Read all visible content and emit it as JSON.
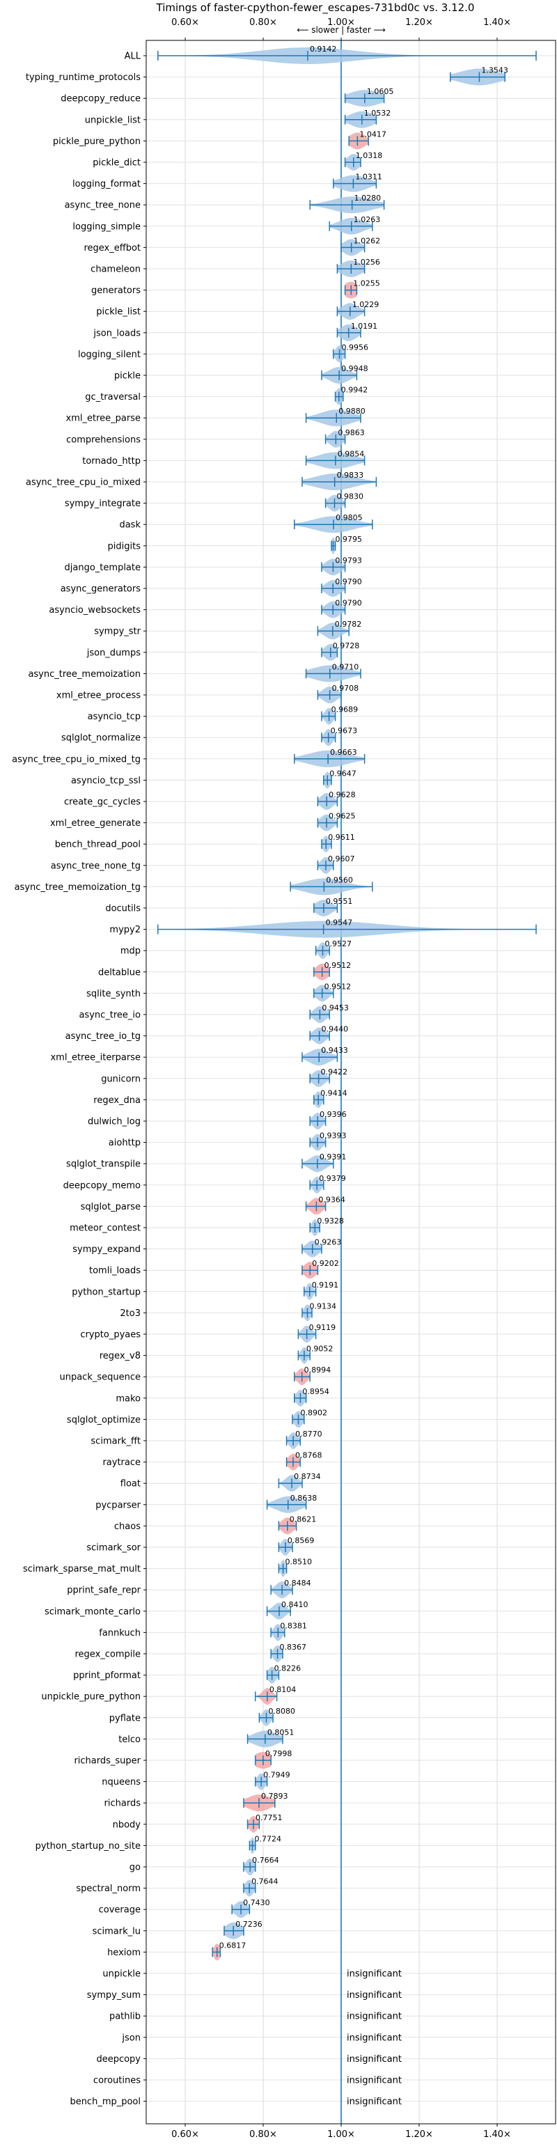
{
  "chart_data": {
    "type": "violin",
    "title": "Timings of faster-cpython-fewer_escapes-731bd0c vs. 3.12.0",
    "direction_label": "⟵ slower | faster ⟶",
    "xlim": [
      0.5,
      1.55
    ],
    "x_ticks": [
      0.6,
      0.8,
      1.0,
      1.2,
      1.4
    ],
    "x_tick_labels": [
      "0.60×",
      "0.80×",
      "1.00×",
      "1.20×",
      "1.40×"
    ],
    "reference_line": 1.0,
    "grid": true,
    "colors": {
      "normal": "#a6c8e8",
      "significant": "#f4a6a6",
      "line": "#1f77b4"
    },
    "insignificant_label": "insignificant",
    "benchmarks": [
      {
        "name": "ALL",
        "value": 0.9142,
        "lo": 0.53,
        "hi": 1.5,
        "spread": 0.12,
        "highlight": false
      },
      {
        "name": "typing_runtime_protocols",
        "value": 1.3543,
        "lo": 1.28,
        "hi": 1.42,
        "spread": 0.05,
        "highlight": false
      },
      {
        "name": "deepcopy_reduce",
        "value": 1.0605,
        "lo": 1.01,
        "hi": 1.11,
        "spread": 0.04,
        "highlight": false
      },
      {
        "name": "unpickle_list",
        "value": 1.0532,
        "lo": 1.01,
        "hi": 1.09,
        "spread": 0.03,
        "highlight": false
      },
      {
        "name": "pickle_pure_python",
        "value": 1.0417,
        "lo": 1.02,
        "hi": 1.07,
        "spread": 0.02,
        "highlight": true
      },
      {
        "name": "pickle_dict",
        "value": 1.0318,
        "lo": 1.01,
        "hi": 1.05,
        "spread": 0.015,
        "highlight": false
      },
      {
        "name": "logging_format",
        "value": 1.0311,
        "lo": 0.98,
        "hi": 1.09,
        "spread": 0.035,
        "highlight": false
      },
      {
        "name": "async_tree_none",
        "value": 1.028,
        "lo": 0.92,
        "hi": 1.11,
        "spread": 0.05,
        "highlight": false
      },
      {
        "name": "logging_simple",
        "value": 1.0263,
        "lo": 0.97,
        "hi": 1.08,
        "spread": 0.03,
        "highlight": false
      },
      {
        "name": "regex_effbot",
        "value": 1.0262,
        "lo": 1.0,
        "hi": 1.06,
        "spread": 0.02,
        "highlight": false
      },
      {
        "name": "chameleon",
        "value": 1.0256,
        "lo": 0.99,
        "hi": 1.06,
        "spread": 0.025,
        "highlight": false
      },
      {
        "name": "generators",
        "value": 1.0255,
        "lo": 1.01,
        "hi": 1.04,
        "spread": 0.02,
        "highlight": true
      },
      {
        "name": "pickle_list",
        "value": 1.0229,
        "lo": 0.99,
        "hi": 1.06,
        "spread": 0.02,
        "highlight": false
      },
      {
        "name": "json_loads",
        "value": 1.0191,
        "lo": 0.99,
        "hi": 1.05,
        "spread": 0.02,
        "highlight": false
      },
      {
        "name": "logging_silent",
        "value": 0.9956,
        "lo": 0.98,
        "hi": 1.01,
        "spread": 0.01,
        "highlight": false
      },
      {
        "name": "pickle",
        "value": 0.9948,
        "lo": 0.95,
        "hi": 1.04,
        "spread": 0.025,
        "highlight": false
      },
      {
        "name": "gc_traversal",
        "value": 0.9942,
        "lo": 0.985,
        "hi": 1.005,
        "spread": 0.008,
        "highlight": false
      },
      {
        "name": "xml_etree_parse",
        "value": 0.988,
        "lo": 0.91,
        "hi": 1.05,
        "spread": 0.04,
        "highlight": false
      },
      {
        "name": "comprehensions",
        "value": 0.9863,
        "lo": 0.96,
        "hi": 1.01,
        "spread": 0.015,
        "highlight": false
      },
      {
        "name": "tornado_http",
        "value": 0.9854,
        "lo": 0.91,
        "hi": 1.06,
        "spread": 0.045,
        "highlight": false
      },
      {
        "name": "async_tree_cpu_io_mixed",
        "value": 0.9833,
        "lo": 0.9,
        "hi": 1.09,
        "spread": 0.05,
        "highlight": false
      },
      {
        "name": "sympy_integrate",
        "value": 0.983,
        "lo": 0.96,
        "hi": 1.01,
        "spread": 0.015,
        "highlight": false
      },
      {
        "name": "dask",
        "value": 0.9805,
        "lo": 0.88,
        "hi": 1.08,
        "spread": 0.05,
        "highlight": false
      },
      {
        "name": "pidigits",
        "value": 0.9795,
        "lo": 0.975,
        "hi": 0.985,
        "spread": 0.005,
        "highlight": false
      },
      {
        "name": "django_template",
        "value": 0.9793,
        "lo": 0.95,
        "hi": 1.01,
        "spread": 0.018,
        "highlight": false
      },
      {
        "name": "async_generators",
        "value": 0.979,
        "lo": 0.95,
        "hi": 1.01,
        "spread": 0.018,
        "highlight": false
      },
      {
        "name": "asyncio_websockets",
        "value": 0.979,
        "lo": 0.95,
        "hi": 1.01,
        "spread": 0.018,
        "highlight": false
      },
      {
        "name": "sympy_str",
        "value": 0.9782,
        "lo": 0.94,
        "hi": 1.02,
        "spread": 0.02,
        "highlight": false
      },
      {
        "name": "json_dumps",
        "value": 0.9728,
        "lo": 0.95,
        "hi": 0.99,
        "spread": 0.015,
        "highlight": false
      },
      {
        "name": "async_tree_memoization",
        "value": 0.971,
        "lo": 0.91,
        "hi": 1.05,
        "spread": 0.045,
        "highlight": false
      },
      {
        "name": "xml_etree_process",
        "value": 0.9708,
        "lo": 0.94,
        "hi": 1.0,
        "spread": 0.018,
        "highlight": false
      },
      {
        "name": "asyncio_tcp",
        "value": 0.9689,
        "lo": 0.95,
        "hi": 0.985,
        "spread": 0.01,
        "highlight": false
      },
      {
        "name": "sqlglot_normalize",
        "value": 0.9673,
        "lo": 0.95,
        "hi": 0.985,
        "spread": 0.01,
        "highlight": false
      },
      {
        "name": "async_tree_cpu_io_mixed_tg",
        "value": 0.9663,
        "lo": 0.88,
        "hi": 1.06,
        "spread": 0.05,
        "highlight": false
      },
      {
        "name": "asyncio_tcp_ssl",
        "value": 0.9647,
        "lo": 0.955,
        "hi": 0.975,
        "spread": 0.007,
        "highlight": false
      },
      {
        "name": "create_gc_cycles",
        "value": 0.9628,
        "lo": 0.94,
        "hi": 0.99,
        "spread": 0.015,
        "highlight": false
      },
      {
        "name": "xml_etree_generate",
        "value": 0.9625,
        "lo": 0.94,
        "hi": 0.99,
        "spread": 0.015,
        "highlight": false
      },
      {
        "name": "bench_thread_pool",
        "value": 0.9611,
        "lo": 0.95,
        "hi": 0.975,
        "spread": 0.008,
        "highlight": false
      },
      {
        "name": "async_tree_none_tg",
        "value": 0.9607,
        "lo": 0.94,
        "hi": 0.98,
        "spread": 0.012,
        "highlight": false
      },
      {
        "name": "async_tree_memoization_tg",
        "value": 0.956,
        "lo": 0.87,
        "hi": 1.08,
        "spread": 0.05,
        "highlight": false
      },
      {
        "name": "docutils",
        "value": 0.9551,
        "lo": 0.93,
        "hi": 0.99,
        "spread": 0.02,
        "highlight": false
      },
      {
        "name": "mypy2",
        "value": 0.9547,
        "lo": 0.53,
        "hi": 1.5,
        "spread": 0.15,
        "highlight": false
      },
      {
        "name": "mdp",
        "value": 0.9527,
        "lo": 0.935,
        "hi": 0.97,
        "spread": 0.01,
        "highlight": false
      },
      {
        "name": "deltablue",
        "value": 0.9512,
        "lo": 0.93,
        "hi": 0.97,
        "spread": 0.015,
        "highlight": true
      },
      {
        "name": "sqlite_synth",
        "value": 0.9512,
        "lo": 0.93,
        "hi": 0.98,
        "spread": 0.015,
        "highlight": false
      },
      {
        "name": "async_tree_io",
        "value": 0.9453,
        "lo": 0.92,
        "hi": 0.97,
        "spread": 0.015,
        "highlight": false
      },
      {
        "name": "async_tree_io_tg",
        "value": 0.944,
        "lo": 0.92,
        "hi": 0.97,
        "spread": 0.015,
        "highlight": false
      },
      {
        "name": "xml_etree_iterparse",
        "value": 0.9433,
        "lo": 0.9,
        "hi": 0.99,
        "spread": 0.025,
        "highlight": false
      },
      {
        "name": "gunicorn",
        "value": 0.9422,
        "lo": 0.92,
        "hi": 0.97,
        "spread": 0.015,
        "highlight": false
      },
      {
        "name": "regex_dna",
        "value": 0.9414,
        "lo": 0.93,
        "hi": 0.955,
        "spread": 0.008,
        "highlight": false
      },
      {
        "name": "dulwich_log",
        "value": 0.9396,
        "lo": 0.92,
        "hi": 0.96,
        "spread": 0.012,
        "highlight": false
      },
      {
        "name": "aiohttp",
        "value": 0.9393,
        "lo": 0.92,
        "hi": 0.96,
        "spread": 0.012,
        "highlight": false
      },
      {
        "name": "sqlglot_transpile",
        "value": 0.9391,
        "lo": 0.9,
        "hi": 0.98,
        "spread": 0.02,
        "highlight": false
      },
      {
        "name": "deepcopy_memo",
        "value": 0.9379,
        "lo": 0.92,
        "hi": 0.955,
        "spread": 0.01,
        "highlight": false
      },
      {
        "name": "sqlglot_parse",
        "value": 0.9364,
        "lo": 0.91,
        "hi": 0.96,
        "spread": 0.015,
        "highlight": true
      },
      {
        "name": "meteor_contest",
        "value": 0.9328,
        "lo": 0.92,
        "hi": 0.945,
        "spread": 0.008,
        "highlight": false
      },
      {
        "name": "sympy_expand",
        "value": 0.9263,
        "lo": 0.9,
        "hi": 0.95,
        "spread": 0.015,
        "highlight": false
      },
      {
        "name": "tomli_loads",
        "value": 0.9202,
        "lo": 0.9,
        "hi": 0.94,
        "spread": 0.015,
        "highlight": true
      },
      {
        "name": "python_startup",
        "value": 0.9191,
        "lo": 0.905,
        "hi": 0.935,
        "spread": 0.008,
        "highlight": false
      },
      {
        "name": "2to3",
        "value": 0.9134,
        "lo": 0.9,
        "hi": 0.925,
        "spread": 0.008,
        "highlight": false
      },
      {
        "name": "crypto_pyaes",
        "value": 0.9119,
        "lo": 0.89,
        "hi": 0.935,
        "spread": 0.012,
        "highlight": false
      },
      {
        "name": "regex_v8",
        "value": 0.9052,
        "lo": 0.89,
        "hi": 0.92,
        "spread": 0.008,
        "highlight": false
      },
      {
        "name": "unpack_sequence",
        "value": 0.8994,
        "lo": 0.88,
        "hi": 0.92,
        "spread": 0.012,
        "highlight": true
      },
      {
        "name": "mako",
        "value": 0.8954,
        "lo": 0.88,
        "hi": 0.91,
        "spread": 0.01,
        "highlight": false
      },
      {
        "name": "sqlglot_optimize",
        "value": 0.8902,
        "lo": 0.875,
        "hi": 0.905,
        "spread": 0.01,
        "highlight": false
      },
      {
        "name": "scimark_fft",
        "value": 0.877,
        "lo": 0.86,
        "hi": 0.895,
        "spread": 0.01,
        "highlight": false
      },
      {
        "name": "raytrace",
        "value": 0.8768,
        "lo": 0.86,
        "hi": 0.895,
        "spread": 0.012,
        "highlight": true
      },
      {
        "name": "float",
        "value": 0.8734,
        "lo": 0.84,
        "hi": 0.9,
        "spread": 0.015,
        "highlight": false
      },
      {
        "name": "pycparser",
        "value": 0.8638,
        "lo": 0.81,
        "hi": 0.91,
        "spread": 0.03,
        "highlight": false
      },
      {
        "name": "chaos",
        "value": 0.8621,
        "lo": 0.84,
        "hi": 0.885,
        "spread": 0.015,
        "highlight": true
      },
      {
        "name": "scimark_sor",
        "value": 0.8569,
        "lo": 0.84,
        "hi": 0.875,
        "spread": 0.01,
        "highlight": false
      },
      {
        "name": "scimark_sparse_mat_mult",
        "value": 0.851,
        "lo": 0.84,
        "hi": 0.86,
        "spread": 0.006,
        "highlight": false
      },
      {
        "name": "pprint_safe_repr",
        "value": 0.8484,
        "lo": 0.82,
        "hi": 0.875,
        "spread": 0.015,
        "highlight": false
      },
      {
        "name": "scimark_monte_carlo",
        "value": 0.841,
        "lo": 0.81,
        "hi": 0.87,
        "spread": 0.015,
        "highlight": false
      },
      {
        "name": "fannkuch",
        "value": 0.8381,
        "lo": 0.82,
        "hi": 0.855,
        "spread": 0.01,
        "highlight": false
      },
      {
        "name": "regex_compile",
        "value": 0.8367,
        "lo": 0.82,
        "hi": 0.85,
        "spread": 0.01,
        "highlight": false
      },
      {
        "name": "pprint_pformat",
        "value": 0.8226,
        "lo": 0.81,
        "hi": 0.84,
        "spread": 0.01,
        "highlight": false
      },
      {
        "name": "unpickle_pure_python",
        "value": 0.8104,
        "lo": 0.78,
        "hi": 0.835,
        "spread": 0.012,
        "highlight": true
      },
      {
        "name": "pyflate",
        "value": 0.808,
        "lo": 0.79,
        "hi": 0.825,
        "spread": 0.01,
        "highlight": false
      },
      {
        "name": "telco",
        "value": 0.8051,
        "lo": 0.76,
        "hi": 0.85,
        "spread": 0.03,
        "highlight": false
      },
      {
        "name": "richards_super",
        "value": 0.7998,
        "lo": 0.78,
        "hi": 0.82,
        "spread": 0.025,
        "highlight": true
      },
      {
        "name": "nqueens",
        "value": 0.7949,
        "lo": 0.78,
        "hi": 0.81,
        "spread": 0.01,
        "highlight": false
      },
      {
        "name": "richards",
        "value": 0.7893,
        "lo": 0.75,
        "hi": 0.83,
        "spread": 0.03,
        "highlight": true
      },
      {
        "name": "nbody",
        "value": 0.7751,
        "lo": 0.76,
        "hi": 0.79,
        "spread": 0.01,
        "highlight": true
      },
      {
        "name": "python_startup_no_site",
        "value": 0.7724,
        "lo": 0.765,
        "hi": 0.78,
        "spread": 0.005,
        "highlight": false
      },
      {
        "name": "go",
        "value": 0.7664,
        "lo": 0.75,
        "hi": 0.78,
        "spread": 0.01,
        "highlight": false
      },
      {
        "name": "spectral_norm",
        "value": 0.7644,
        "lo": 0.75,
        "hi": 0.78,
        "spread": 0.01,
        "highlight": false
      },
      {
        "name": "coverage",
        "value": 0.743,
        "lo": 0.72,
        "hi": 0.765,
        "spread": 0.015,
        "highlight": false
      },
      {
        "name": "scimark_lu",
        "value": 0.7236,
        "lo": 0.7,
        "hi": 0.75,
        "spread": 0.02,
        "highlight": false
      },
      {
        "name": "hexiom",
        "value": 0.6817,
        "lo": 0.67,
        "hi": 0.69,
        "spread": 0.008,
        "highlight": true
      },
      {
        "name": "unpickle",
        "value": null,
        "insignificant": true
      },
      {
        "name": "sympy_sum",
        "value": null,
        "insignificant": true
      },
      {
        "name": "pathlib",
        "value": null,
        "insignificant": true
      },
      {
        "name": "json",
        "value": null,
        "insignificant": true
      },
      {
        "name": "deepcopy",
        "value": null,
        "insignificant": true
      },
      {
        "name": "coroutines",
        "value": null,
        "insignificant": true
      },
      {
        "name": "bench_mp_pool",
        "value": null,
        "insignificant": true
      }
    ]
  }
}
